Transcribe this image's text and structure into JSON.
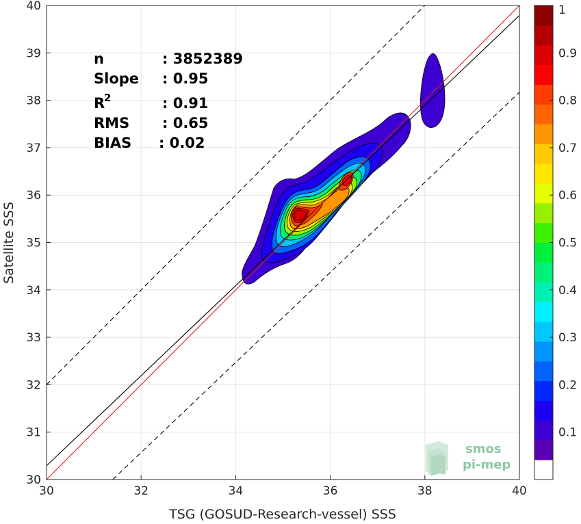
{
  "chart_data": {
    "type": "density-scatter",
    "xlabel": "TSG (GOSUD-Research-vessel) SSS",
    "ylabel": "Satellite SSS",
    "xlim": [
      30,
      40
    ],
    "ylim": [
      30,
      40
    ],
    "xticks": [
      "30",
      "32",
      "34",
      "36",
      "38",
      "40"
    ],
    "yticks": [
      "30",
      "31",
      "32",
      "33",
      "34",
      "35",
      "36",
      "37",
      "38",
      "39",
      "40"
    ],
    "grid": true,
    "stats": [
      {
        "label": "n",
        "value": ": 3852389"
      },
      {
        "label": "Slope",
        "value": ": 0.95"
      },
      {
        "label": "R",
        "sup": "2",
        "value": ": 0.91"
      },
      {
        "label": "RMS",
        "value": ": 0.65"
      },
      {
        "label": "BIAS",
        "value": ": 0.02"
      }
    ],
    "lines": {
      "one_to_one": {
        "color": "#e8191c",
        "points": [
          [
            30,
            30
          ],
          [
            40,
            40
          ]
        ]
      },
      "fit": {
        "color": "#000000",
        "points": [
          [
            30,
            30.29
          ],
          [
            40,
            39.79
          ]
        ]
      },
      "upper_dashed": {
        "color": "#000000",
        "points": [
          [
            30,
            32
          ],
          [
            38,
            40
          ]
        ]
      },
      "lower_dashed": {
        "color": "#000000",
        "points": [
          [
            31.4,
            30
          ],
          [
            40,
            38.17
          ]
        ]
      }
    },
    "density_peaks": [
      {
        "x": 35.3,
        "y": 35.5,
        "level": 1.0
      },
      {
        "x": 36.4,
        "y": 36.35,
        "level": 0.85
      },
      {
        "x": 38.2,
        "y": 38.3,
        "level": 0.1
      }
    ],
    "colorbar": {
      "min": 0,
      "max": 1,
      "ticks": [
        "0.1",
        "0.2",
        "0.3",
        "0.4",
        "0.5",
        "0.6",
        "0.7",
        "0.8",
        "0.9",
        "1"
      ],
      "colors": [
        "#ffffff",
        "#5a00b4",
        "#3c00d2",
        "#1e00f0",
        "#0028ff",
        "#0064ff",
        "#0096ff",
        "#00c8ff",
        "#00f0ff",
        "#00f0b4",
        "#00f078",
        "#00f03c",
        "#3cf000",
        "#96f000",
        "#e6ff00",
        "#ffe600",
        "#ffc800",
        "#ff9600",
        "#ff6400",
        "#ff3c00",
        "#ff0000",
        "#dc0000",
        "#b40000",
        "#8c0000"
      ]
    }
  },
  "logo": {
    "line1": "smos",
    "line2": "pi-mep"
  }
}
